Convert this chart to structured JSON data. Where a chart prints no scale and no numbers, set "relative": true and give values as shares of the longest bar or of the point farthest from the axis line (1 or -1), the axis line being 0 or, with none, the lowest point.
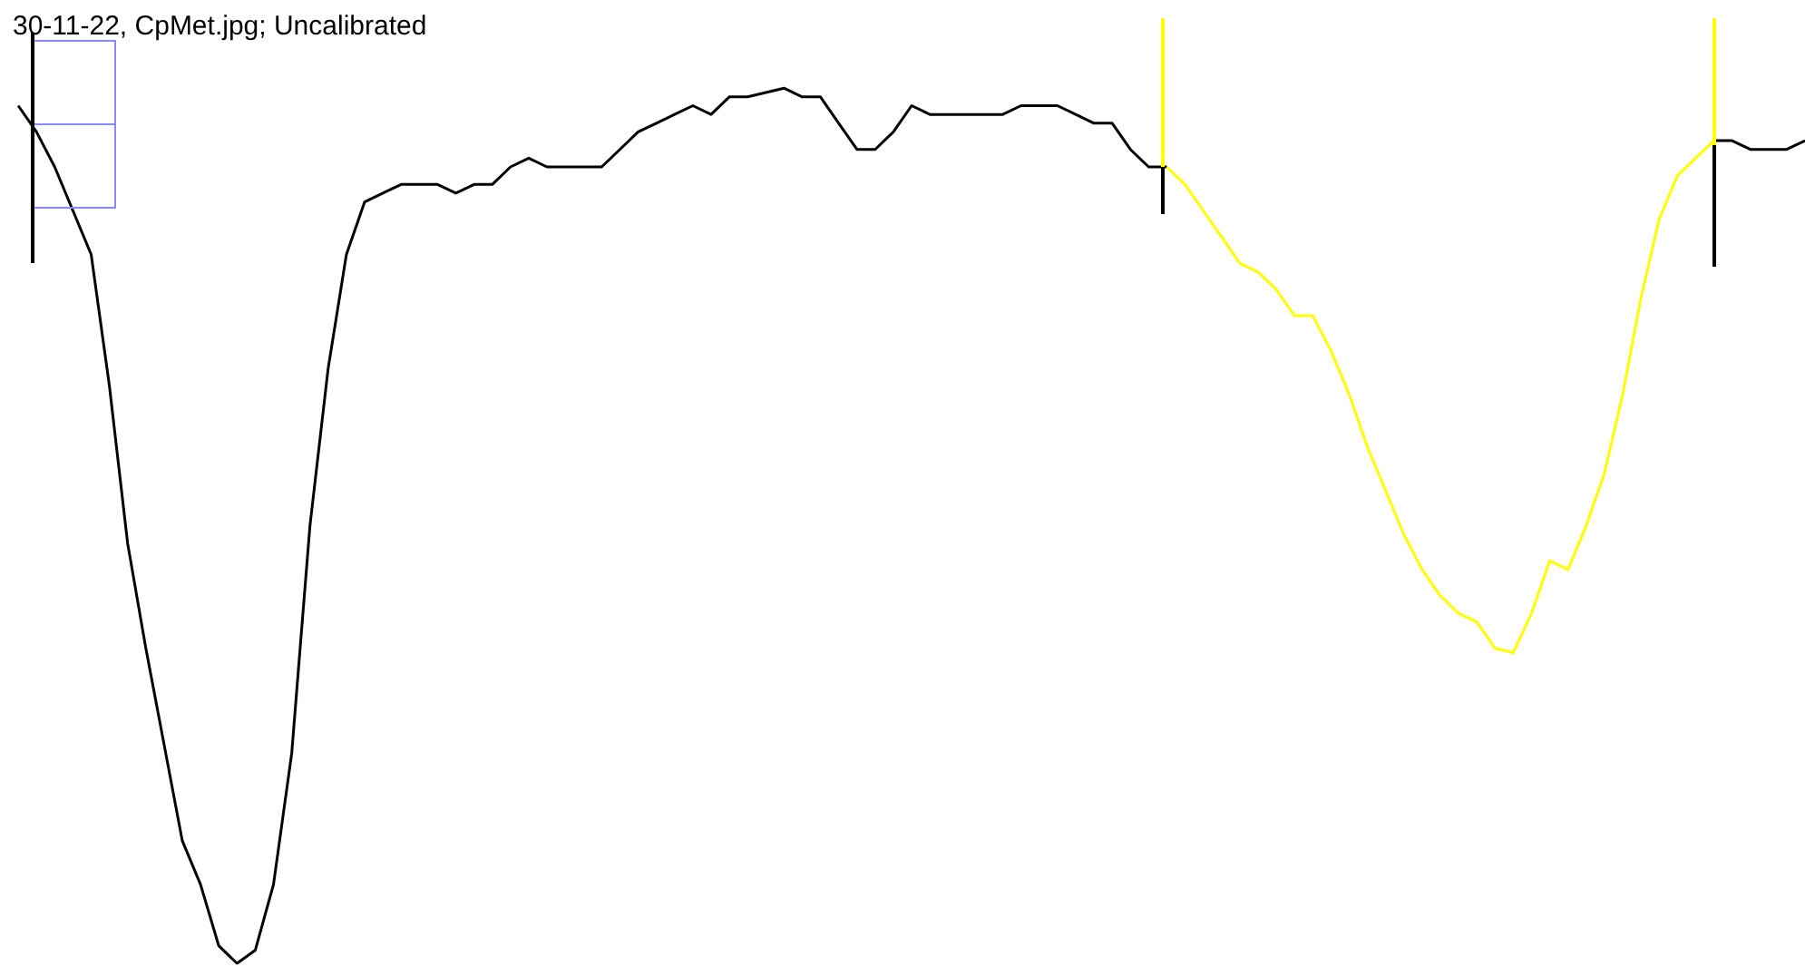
{
  "chart_data": {
    "type": "line",
    "title": "30-11-22, CpMet.jpg; Uncalibrated",
    "relative": true,
    "tick_labels": false,
    "marker": "none",
    "line_style": "solid",
    "categories": [
      null,
      null,
      null,
      null,
      null,
      null,
      null,
      null,
      null,
      null,
      null,
      null,
      null,
      null,
      null,
      null,
      null,
      null,
      null,
      null,
      null,
      null,
      null,
      null,
      null,
      null,
      null,
      null,
      null,
      null,
      null,
      null,
      null,
      null,
      null,
      null,
      null,
      null,
      null,
      null,
      null,
      null,
      null,
      null,
      null,
      null,
      null,
      null,
      null,
      null,
      null,
      null,
      null,
      null,
      null,
      null,
      null,
      null,
      null,
      null,
      null,
      null,
      null,
      null,
      null,
      null,
      null,
      null,
      null,
      null,
      null,
      null,
      null,
      null,
      null,
      null,
      null,
      null,
      null,
      null,
      null,
      null,
      null,
      null,
      null,
      null,
      null,
      null,
      null,
      null,
      null,
      null,
      null,
      null,
      null,
      null,
      null,
      null,
      null,
      null
    ],
    "series": [
      {
        "color": "#000000",
        "values": [
          null,
          0.98,
          0.95,
          0.91,
          0.86,
          0.81,
          0.66,
          0.48,
          0.36,
          0.25,
          0.14,
          0.09,
          0.02,
          0,
          0.015,
          0.09,
          0.24,
          0.5,
          0.68,
          0.81,
          0.87,
          0.88,
          0.89,
          0.89,
          0.89,
          0.88,
          0.89,
          0.89,
          0.91,
          0.92,
          0.91,
          0.91,
          0.91,
          0.91,
          0.93,
          0.95,
          0.96,
          0.97,
          0.98,
          0.97,
          0.99,
          0.99,
          0.995,
          1,
          0.99,
          0.99,
          0.96,
          0.93,
          0.93,
          0.95,
          0.98,
          0.97,
          0.97,
          0.97,
          0.97,
          0.97,
          0.98,
          0.98,
          0.98,
          0.97,
          0.96,
          0.96,
          0.93,
          0.91,
          0.91,
          null,
          null,
          null,
          null,
          null,
          null,
          null,
          null,
          null,
          null,
          null,
          null,
          null,
          null,
          null,
          null,
          null,
          null,
          null,
          null,
          null,
          null,
          null,
          null,
          null,
          null,
          null,
          null,
          null,
          null,
          null,
          null,
          null,
          null,
          null
        ]
      },
      {
        "color": "#ffff00",
        "values": [
          null,
          null,
          null,
          null,
          null,
          null,
          null,
          null,
          null,
          null,
          null,
          null,
          null,
          null,
          null,
          null,
          null,
          null,
          null,
          null,
          null,
          null,
          null,
          null,
          null,
          null,
          null,
          null,
          null,
          null,
          null,
          null,
          null,
          null,
          null,
          null,
          null,
          null,
          null,
          null,
          null,
          null,
          null,
          null,
          null,
          null,
          null,
          null,
          null,
          null,
          null,
          null,
          null,
          null,
          null,
          null,
          null,
          null,
          null,
          null,
          null,
          null,
          null,
          null,
          0.91,
          0.89,
          0.86,
          0.83,
          0.8,
          0.79,
          0.77,
          0.74,
          0.74,
          0.7,
          0.65,
          0.59,
          0.54,
          0.49,
          0.45,
          0.42,
          0.4,
          0.39,
          0.36,
          0.355,
          0.4,
          0.46,
          0.45,
          0.5,
          0.56,
          0.65,
          0.76,
          0.85,
          0.9,
          0.92,
          0.94,
          null,
          null,
          null,
          null,
          null
        ]
      },
      {
        "color": "#000000",
        "values": [
          null,
          null,
          null,
          null,
          null,
          null,
          null,
          null,
          null,
          null,
          null,
          null,
          null,
          null,
          null,
          null,
          null,
          null,
          null,
          null,
          null,
          null,
          null,
          null,
          null,
          null,
          null,
          null,
          null,
          null,
          null,
          null,
          null,
          null,
          null,
          null,
          null,
          null,
          null,
          null,
          null,
          null,
          null,
          null,
          null,
          null,
          null,
          null,
          null,
          null,
          null,
          null,
          null,
          null,
          null,
          null,
          null,
          null,
          null,
          null,
          null,
          null,
          null,
          null,
          null,
          null,
          null,
          null,
          null,
          null,
          null,
          null,
          null,
          null,
          null,
          null,
          null,
          null,
          null,
          null,
          null,
          null,
          null,
          null,
          null,
          null,
          null,
          null,
          null,
          null,
          null,
          null,
          null,
          null,
          0.94,
          0.94,
          0.93,
          0.93,
          0.93,
          0.94
        ]
      }
    ]
  }
}
